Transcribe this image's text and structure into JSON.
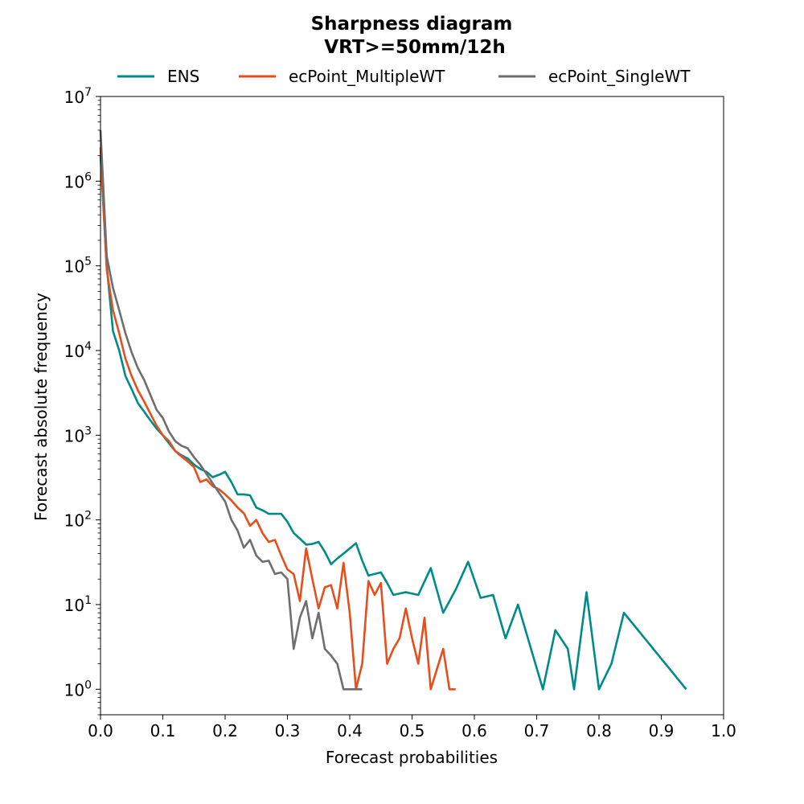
{
  "chart_data": {
    "type": "line",
    "title": "Sharpness diagram",
    "subtitle": "VRT>=50mm/12h",
    "xlabel": "Forecast probabilities",
    "ylabel": "Forecast absolute frequency",
    "xlim": [
      0,
      1
    ],
    "ylim": [
      0.5,
      10000000
    ],
    "yscale": "log",
    "grid": false,
    "legend_position": "top",
    "x_ticks": [
      "0.0",
      "0.1",
      "0.2",
      "0.3",
      "0.4",
      "0.5",
      "0.6",
      "0.7",
      "0.8",
      "0.9",
      "1.0"
    ],
    "y_ticks": [
      {
        "base": "10",
        "exp": "0"
      },
      {
        "base": "10",
        "exp": "1"
      },
      {
        "base": "10",
        "exp": "2"
      },
      {
        "base": "10",
        "exp": "3"
      },
      {
        "base": "10",
        "exp": "4"
      },
      {
        "base": "10",
        "exp": "5"
      },
      {
        "base": "10",
        "exp": "6"
      },
      {
        "base": "10",
        "exp": "7"
      }
    ],
    "series": [
      {
        "name": "ENS",
        "color": "#008B8B",
        "x": [
          0,
          0.01,
          0.02,
          0.03,
          0.04,
          0.05,
          0.06,
          0.07,
          0.08,
          0.09,
          0.1,
          0.11,
          0.12,
          0.13,
          0.14,
          0.15,
          0.16,
          0.17,
          0.18,
          0.19,
          0.2,
          0.21,
          0.22,
          0.23,
          0.24,
          0.25,
          0.26,
          0.27,
          0.28,
          0.29,
          0.3,
          0.31,
          0.32,
          0.33,
          0.34,
          0.35,
          0.36,
          0.37,
          0.38,
          0.39,
          0.4,
          0.41,
          0.42,
          0.43,
          0.44,
          0.45,
          0.46,
          0.47,
          0.48,
          0.49,
          0.5,
          0.51,
          0.53,
          0.55,
          0.57,
          0.59,
          0.61,
          0.63,
          0.65,
          0.67,
          0.71,
          0.73,
          0.75,
          0.76,
          0.78,
          0.8,
          0.82,
          0.84,
          0.94
        ],
        "values": [
          2000000,
          100000,
          17000,
          10000,
          5000,
          3500,
          2400,
          1900,
          1500,
          1200,
          1000,
          800,
          650,
          580,
          530,
          450,
          400,
          370,
          320,
          340,
          370,
          280,
          200,
          200,
          195,
          140,
          130,
          118,
          118,
          118,
          95,
          70,
          60,
          51,
          52,
          55,
          42,
          30,
          35,
          40,
          46,
          53,
          33,
          22,
          23,
          24,
          18,
          13,
          13.5,
          14,
          13.5,
          13,
          27,
          8,
          15,
          32,
          12,
          13,
          4,
          10,
          1,
          5,
          3,
          1,
          14,
          1,
          2,
          8,
          1
        ]
      },
      {
        "name": "ecPoint_MultipleWT",
        "color": "#E84E1B",
        "x": [
          0,
          0.01,
          0.02,
          0.03,
          0.04,
          0.05,
          0.06,
          0.07,
          0.08,
          0.09,
          0.1,
          0.11,
          0.12,
          0.13,
          0.14,
          0.15,
          0.16,
          0.17,
          0.18,
          0.19,
          0.2,
          0.21,
          0.22,
          0.23,
          0.24,
          0.25,
          0.26,
          0.27,
          0.28,
          0.29,
          0.3,
          0.31,
          0.32,
          0.33,
          0.34,
          0.35,
          0.36,
          0.37,
          0.38,
          0.39,
          0.4,
          0.41,
          0.42,
          0.43,
          0.44,
          0.45,
          0.46,
          0.47,
          0.48,
          0.49,
          0.5,
          0.51,
          0.52,
          0.53,
          0.55,
          0.56,
          0.57
        ],
        "values": [
          2500000,
          90000,
          30000,
          16000,
          8000,
          5000,
          3400,
          2500,
          1800,
          1300,
          1000,
          850,
          650,
          560,
          490,
          420,
          280,
          300,
          250,
          230,
          200,
          170,
          140,
          120,
          85,
          100,
          70,
          55,
          58,
          38,
          26,
          23,
          11,
          46,
          20,
          9,
          16,
          17,
          9,
          31,
          8,
          1,
          2,
          19,
          13,
          18,
          2,
          3,
          4,
          9,
          4,
          2,
          7,
          1,
          3,
          1,
          1
        ]
      },
      {
        "name": "ecPoint_SingleWT",
        "color": "#6E6E6E",
        "x": [
          0,
          0.01,
          0.02,
          0.03,
          0.04,
          0.05,
          0.06,
          0.07,
          0.08,
          0.09,
          0.1,
          0.11,
          0.12,
          0.13,
          0.14,
          0.15,
          0.16,
          0.17,
          0.18,
          0.19,
          0.2,
          0.21,
          0.22,
          0.23,
          0.24,
          0.25,
          0.26,
          0.27,
          0.28,
          0.29,
          0.3,
          0.31,
          0.32,
          0.33,
          0.34,
          0.35,
          0.36,
          0.37,
          0.38,
          0.39,
          0.4,
          0.41,
          0.42
        ],
        "values": [
          4000000,
          130000,
          55000,
          30000,
          16000,
          9500,
          6200,
          4500,
          3000,
          2000,
          1600,
          1100,
          850,
          750,
          700,
          550,
          450,
          350,
          270,
          210,
          165,
          100,
          75,
          47,
          58,
          38,
          32,
          33,
          23,
          24,
          20,
          3,
          7,
          11,
          4,
          8,
          3,
          2.5,
          2,
          1,
          1,
          1,
          1
        ]
      }
    ]
  }
}
